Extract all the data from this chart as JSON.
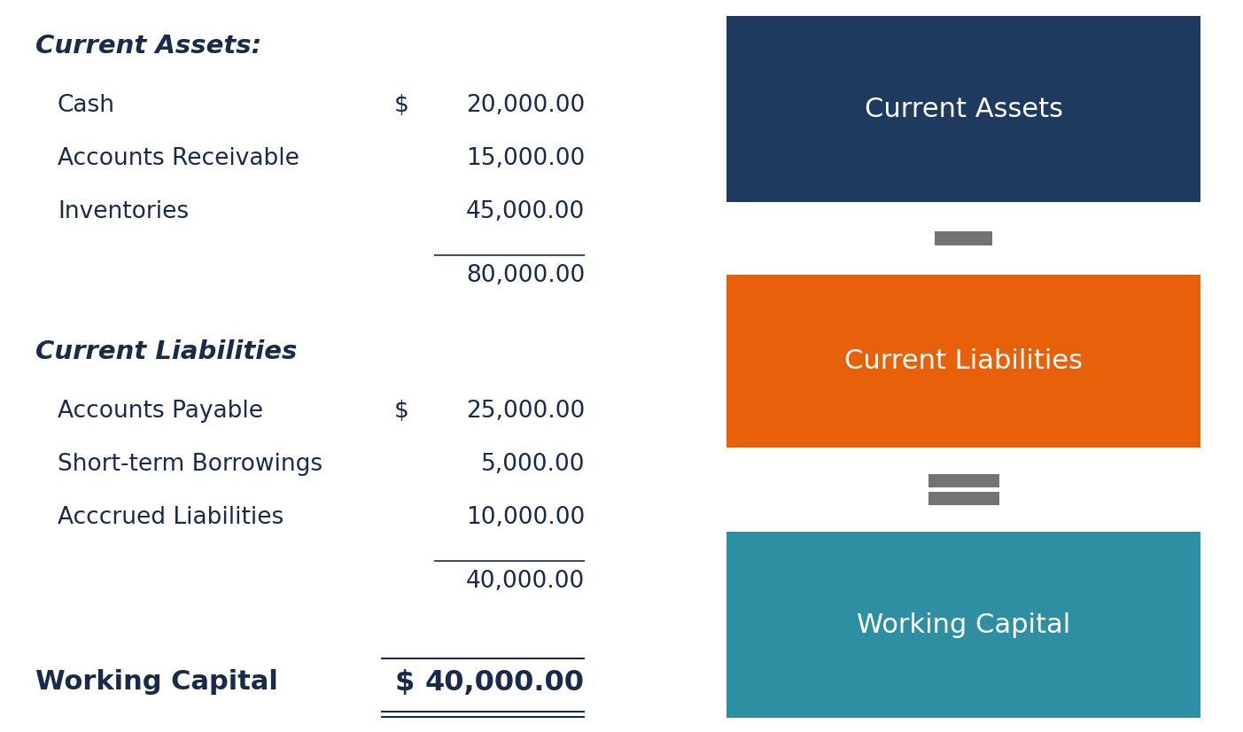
{
  "background_color": "#ffffff",
  "left_section": {
    "current_assets_header": "Current Assets:",
    "current_assets_items": [
      {
        "label": "Cash",
        "dollar": "$",
        "value": "20,000.00"
      },
      {
        "label": "Accounts Receivable",
        "dollar": "",
        "value": "15,000.00"
      },
      {
        "label": "Inventories",
        "dollar": "",
        "value": "45,000.00"
      }
    ],
    "current_assets_total": "80,000.00",
    "current_liabilities_header": "Current Liabilities",
    "current_liabilities_items": [
      {
        "label": "Accounts Payable",
        "dollar": "$",
        "value": "25,000.00"
      },
      {
        "label": "Short-term Borrowings",
        "dollar": "",
        "value": "5,000.00"
      },
      {
        "label": "Acccrued Liabilities",
        "dollar": "",
        "value": "10,000.00"
      }
    ],
    "current_liabilities_total": "40,000.00",
    "working_capital_label": "Working Capital",
    "working_capital_dollar": "$",
    "working_capital_value": "40,000.00"
  },
  "right_section": {
    "boxes": [
      {
        "label": "Current Assets",
        "color": "#1e3a5f",
        "text_color": "#ffffff"
      },
      {
        "label": "Current Liabilities",
        "color": "#e8610a",
        "text_color": "#ffffff"
      },
      {
        "label": "Working Capital",
        "color": "#2e8fa3",
        "text_color": "#ffffff"
      }
    ],
    "minus_color": "#737373",
    "equals_color": "#737373"
  },
  "text_color_dark": "#1a2a4a",
  "text_color_header": "#1a2a4a",
  "line_color": "#1a2a4a",
  "font_size_header": 21,
  "font_size_item": 19,
  "font_size_total": 19,
  "font_size_wc_label": 22,
  "font_size_wc_value": 23,
  "font_size_box": 22,
  "fig_width": 14.03,
  "fig_height": 8.26,
  "dpi": 100
}
